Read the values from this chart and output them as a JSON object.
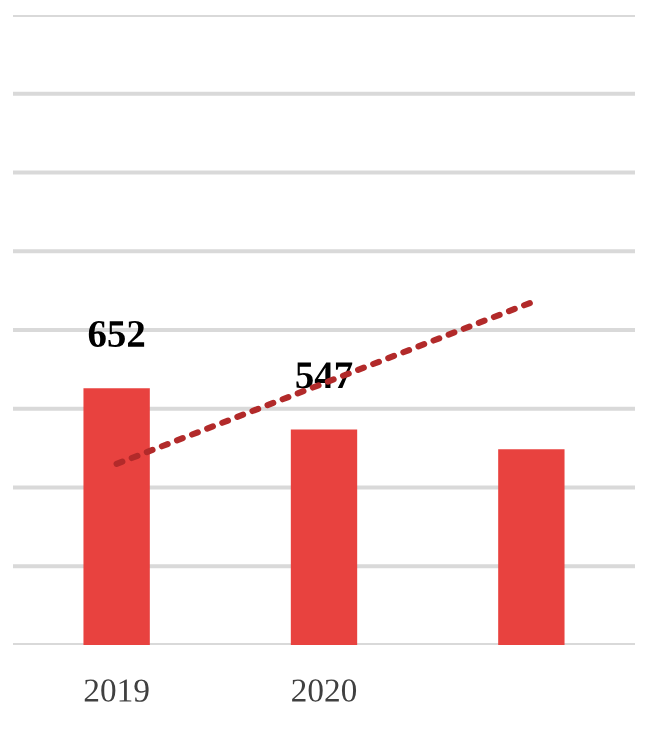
{
  "chart_data": {
    "type": "bar",
    "categories": [
      "2019",
      "2020",
      null
    ],
    "series": [
      {
        "color": "#e8423f",
        "values": [
          652,
          547,
          497
        ],
        "value_labels": [
          "652",
          "547",
          null
        ]
      },
      {
        "type": "line",
        "color": "#b22a2a",
        "values": [
          460,
          665,
          870
        ],
        "line_style": "dotted"
      }
    ],
    "ylim": [
      0,
      1600
    ],
    "yticks": [
      {
        "value": 0,
        "label": null
      },
      {
        "value": 200,
        "label": null
      },
      {
        "value": 400,
        "label": null
      },
      {
        "value": 600,
        "label": null
      },
      {
        "value": 800,
        "label": null
      },
      {
        "value": 1000,
        "label": null
      },
      {
        "value": 1200,
        "label": null
      },
      {
        "value": 1400,
        "label": null
      },
      {
        "value": 1600,
        "label": null
      }
    ],
    "grid": "y",
    "tick_labels": "x"
  }
}
